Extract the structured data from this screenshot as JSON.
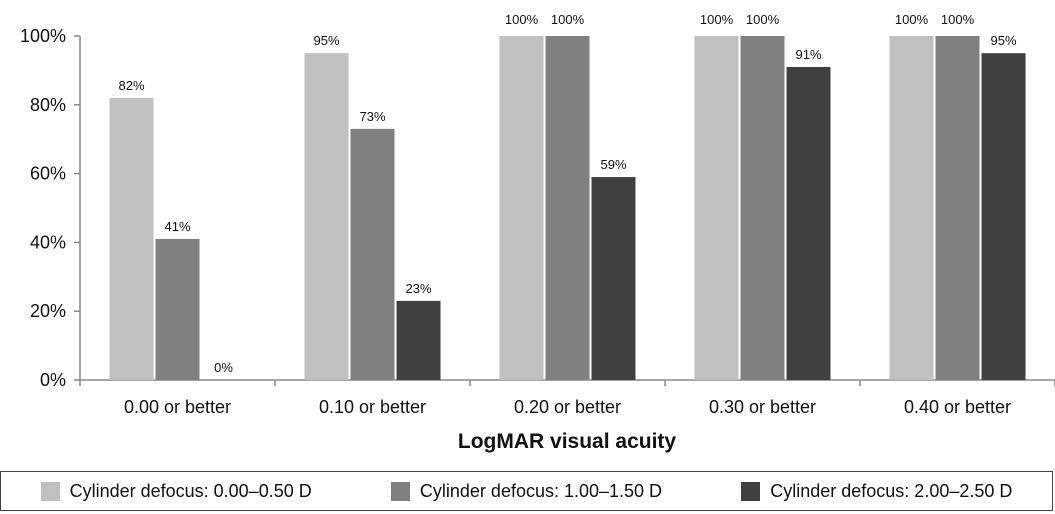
{
  "chart_data": {
    "type": "bar",
    "title": "",
    "xlabel": "LogMAR visual acuity",
    "ylabel": "",
    "ylim": [
      0,
      100
    ],
    "y_ticks": [
      "0%",
      "20%",
      "40%",
      "60%",
      "80%",
      "100%"
    ],
    "grid": false,
    "legend_position": "bottom",
    "categories": [
      "0.00 or better",
      "0.10 or better",
      "0.20 or better",
      "0.30 or better",
      "0.40 or better"
    ],
    "series": [
      {
        "name": "Cylinder defocus: 0.00–0.50 D",
        "color": "#c0c0c0",
        "values": [
          82,
          95,
          100,
          100,
          100
        ],
        "labels": [
          "82%",
          "95%",
          "100%",
          "100%",
          "100%"
        ]
      },
      {
        "name": "Cylinder defocus: 1.00–1.50 D",
        "color": "#808080",
        "values": [
          41,
          73,
          100,
          100,
          100
        ],
        "labels": [
          "41%",
          "73%",
          "100%",
          "100%",
          "100%"
        ]
      },
      {
        "name": "Cylinder defocus: 2.00–2.50 D",
        "color": "#404040",
        "values": [
          0,
          23,
          59,
          91,
          95
        ],
        "labels": [
          "0%",
          "23%",
          "59%",
          "91%",
          "95%"
        ]
      }
    ]
  }
}
